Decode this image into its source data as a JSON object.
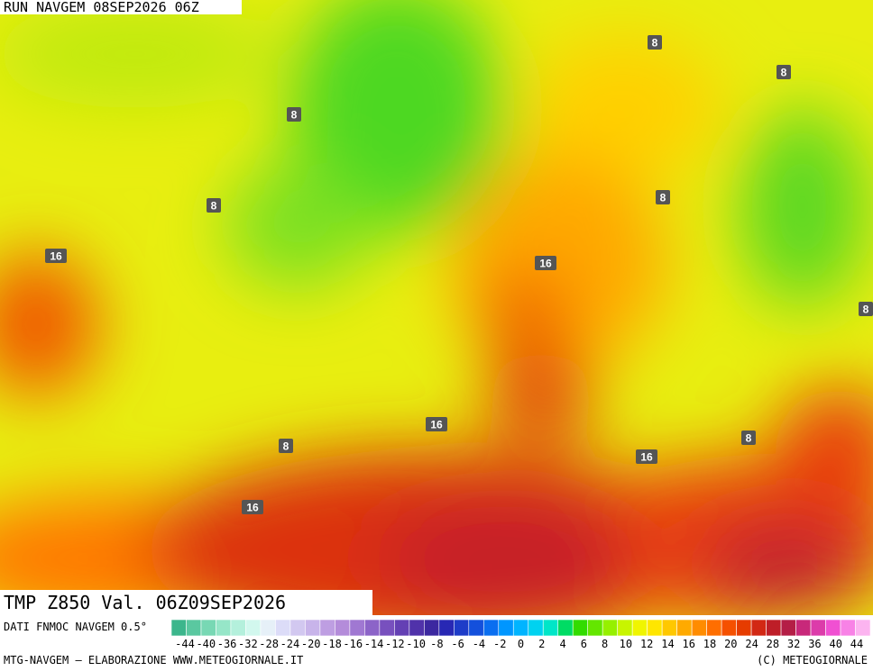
{
  "header": {
    "title": "RUN NAVGEM 08SEP2026 06Z"
  },
  "map": {
    "contour_labels": [
      8,
      8,
      8,
      8,
      8,
      16,
      16,
      8,
      16,
      8,
      8,
      16,
      16
    ]
  },
  "footer": {
    "title": "TMP Z850 Val. 06Z09SEP2026",
    "source": "DATI FNMOC NAVGEM 0.5°",
    "credit": "MTG-NAVGEM – ELABORAZIONE WWW.METEOGIORNALE.IT",
    "copyright": "(C) METEOGIORNALE"
  },
  "colorbar": {
    "labels": [
      -44,
      -40,
      -36,
      -32,
      -28,
      -24,
      -20,
      -18,
      -16,
      -14,
      -12,
      -10,
      -8,
      -6,
      -4,
      -2,
      0,
      2,
      4,
      6,
      8,
      10,
      12,
      14,
      16,
      18,
      20,
      24,
      28,
      32,
      36,
      40,
      44
    ],
    "colors": [
      "#3cb68c",
      "#5ac8a0",
      "#78d8b4",
      "#96e6c8",
      "#b4f0dc",
      "#d2f8ee",
      "#e6f0f8",
      "#dcdcf8",
      "#d2c8f0",
      "#c8b4ea",
      "#be9ee2",
      "#b48cda",
      "#a078d2",
      "#8c64c8",
      "#7850be",
      "#6440b4",
      "#5032aa",
      "#3c28a0",
      "#2828b4",
      "#1e3cc8",
      "#1450dc",
      "#0a6ef0",
      "#0096ff",
      "#00b4ff",
      "#00d2f0",
      "#00e6c8",
      "#00dc64",
      "#32dc00",
      "#64e600",
      "#96f000",
      "#c8f500",
      "#f0f500",
      "#ffe600",
      "#ffc800",
      "#ffaa00",
      "#ff8c00",
      "#ff6e00",
      "#f55000",
      "#e63c00",
      "#d22814",
      "#be1e28",
      "#b41e46",
      "#c8287a",
      "#dc3caa",
      "#f050d2",
      "#f882e6",
      "#fcb4f0"
    ]
  }
}
